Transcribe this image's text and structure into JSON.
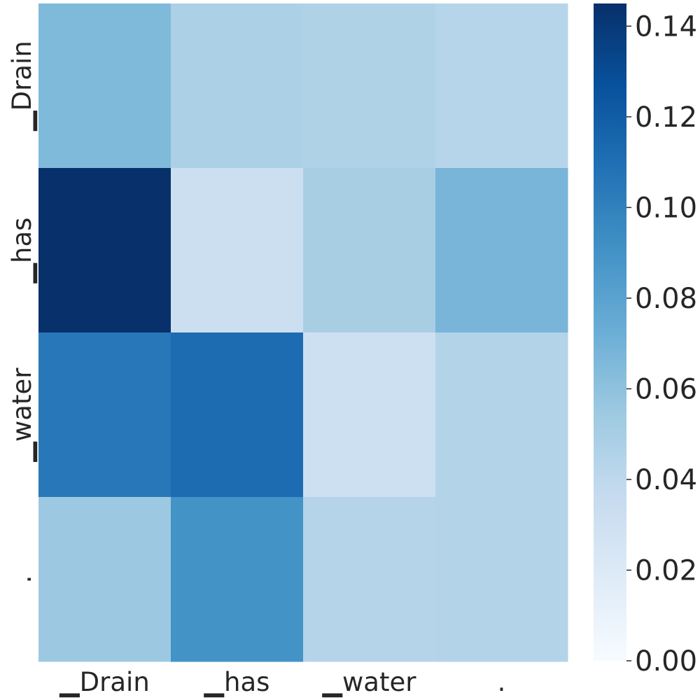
{
  "chart_data": {
    "type": "heatmap",
    "title": "",
    "xlabel": "",
    "ylabel": "",
    "x_categories": [
      "▁Drain",
      "▁has",
      "▁water",
      "."
    ],
    "y_categories": [
      "▁Drain",
      "▁has",
      "▁water",
      "."
    ],
    "values": [
      [
        0.065,
        0.048,
        0.046,
        0.043
      ],
      [
        0.145,
        0.032,
        0.05,
        0.068
      ],
      [
        0.105,
        0.112,
        0.031,
        0.045
      ],
      [
        0.055,
        0.09,
        0.044,
        0.045
      ]
    ],
    "colormap": "Blues",
    "colorbar": {
      "range": [
        0,
        0.145
      ],
      "ticks": [
        0.0,
        0.02,
        0.04,
        0.06,
        0.08,
        0.1,
        0.12,
        0.14
      ],
      "tick_labels": [
        "0.00",
        "0.02",
        "0.04",
        "0.06",
        "0.08",
        "0.10",
        "0.12",
        "0.14"
      ]
    },
    "grid": false,
    "legend": "colorbar-right"
  }
}
